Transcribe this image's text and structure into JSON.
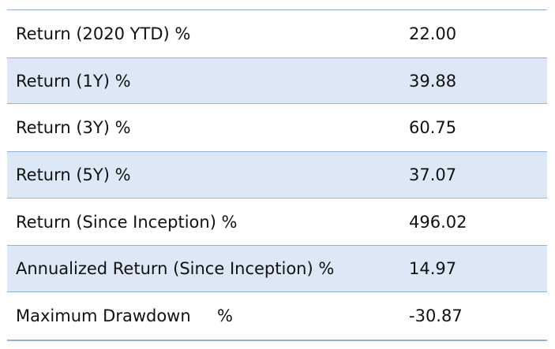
{
  "table": {
    "rows": [
      {
        "label": "Return (2020 YTD) %",
        "value": "22.00"
      },
      {
        "label": "Return (1Y) %",
        "value": "39.88"
      },
      {
        "label": "Return (3Y) %",
        "value": "60.75"
      },
      {
        "label": "Return (5Y) %",
        "value": "37.07"
      },
      {
        "label": "Return (Since Inception) %",
        "value": "496.02"
      },
      {
        "label": "Annualized Return (Since Inception) %",
        "value": "14.97"
      },
      {
        "label": "Maximum Drawdown     %",
        "value": "-30.87"
      }
    ]
  },
  "colors": {
    "shaded_row": "#dce8f6",
    "rule": "#8fb3dc"
  }
}
